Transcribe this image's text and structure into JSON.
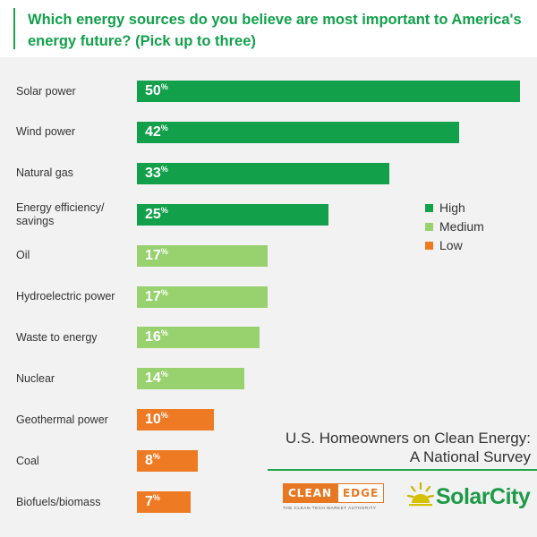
{
  "header": {
    "title": "Which energy sources do you believe are most important to America's energy future? (Pick up to three)"
  },
  "chart_data": {
    "type": "bar",
    "orientation": "horizontal",
    "title": "Which energy sources do you believe are most important to America's energy future? (Pick up to three)",
    "categories": [
      "Solar power",
      "Wind power",
      "Natural gas",
      "Energy efficiency/ savings",
      "Oil",
      "Hydroelectric power",
      "Waste to energy",
      "Nuclear",
      "Geothermal power",
      "Coal",
      "Biofuels/biomass"
    ],
    "values": [
      50,
      42,
      33,
      25,
      17,
      17,
      16,
      14,
      10,
      8,
      7
    ],
    "value_labels": [
      "50",
      "42",
      "33",
      "25",
      "17",
      "17",
      "16",
      "14",
      "10",
      "8",
      "7"
    ],
    "value_suffix": "%",
    "levels": [
      "High",
      "High",
      "High",
      "High",
      "Medium",
      "Medium",
      "Medium",
      "Medium",
      "Low",
      "Low",
      "Low"
    ],
    "xlim": [
      0,
      50
    ],
    "grid": false,
    "legend": {
      "placement": "right",
      "entries": [
        {
          "label": "High",
          "color": "#12a04b"
        },
        {
          "label": "Medium",
          "color": "#97d26e"
        },
        {
          "label": "Low",
          "color": "#ee7b23"
        }
      ]
    }
  },
  "report": {
    "title_line1": "U.S. Homeowners on Clean Energy:",
    "title_line2": "A National Survey"
  },
  "logos": {
    "cleanedge_clean": "CLEAN",
    "cleanedge_edge": "EDGE",
    "cleanedge_tagline": "THE CLEAN-TECH MARKET AUTHORITY",
    "solarcity": "SolarCity"
  },
  "colors": {
    "brand_green": "#12a04b",
    "panel_background": "#f2f2f2",
    "cleanedge_orange": "#e87722"
  }
}
